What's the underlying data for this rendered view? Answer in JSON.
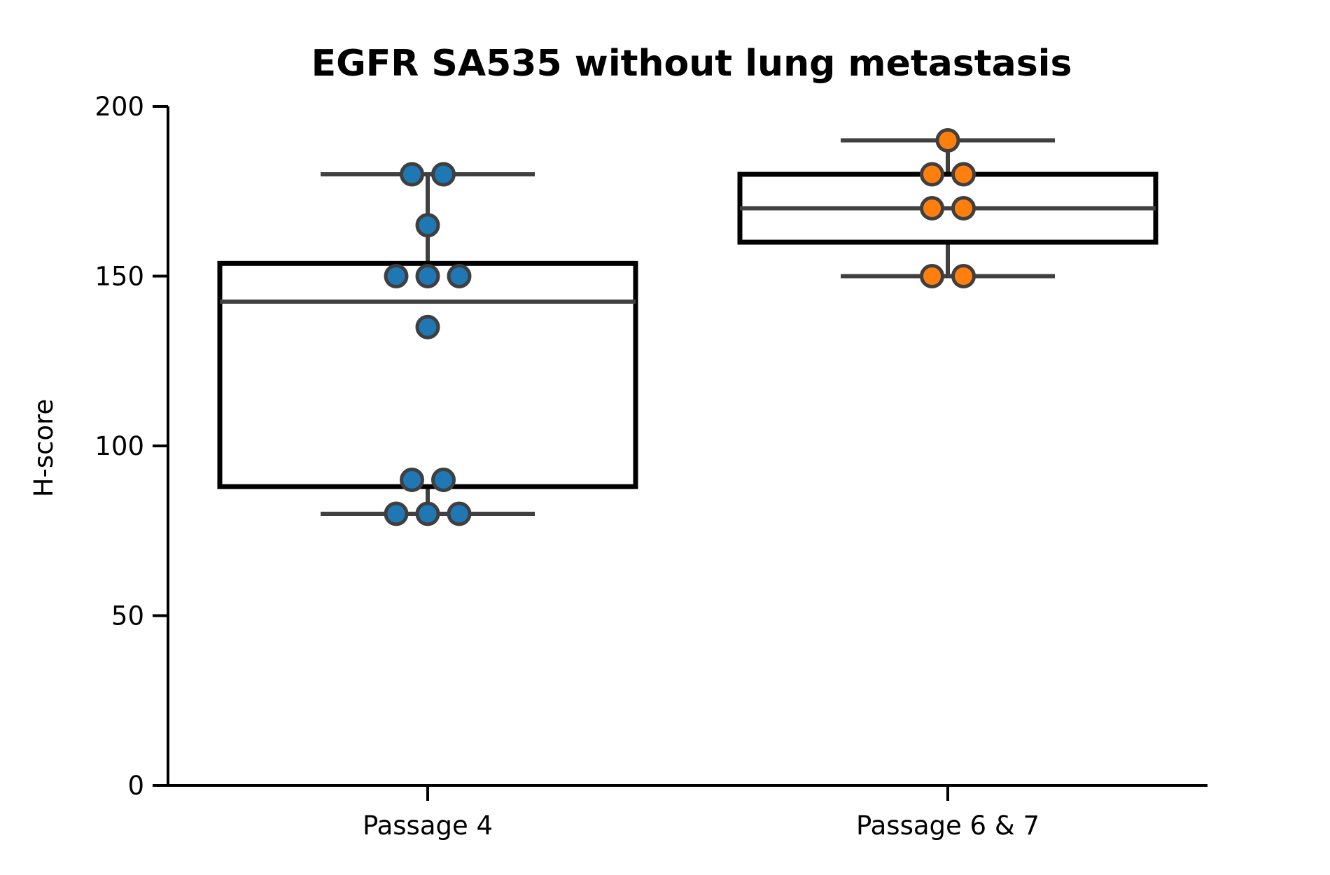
{
  "chart_data": {
    "type": "box",
    "title": "EGFR SA535 without lung metastasis",
    "xlabel": "",
    "ylabel": "H-score",
    "ylim": [
      0,
      200
    ],
    "yticks": [
      0,
      50,
      100,
      150,
      200
    ],
    "yticklabels": [
      "0",
      "50",
      "100",
      "150",
      "200"
    ],
    "categories": [
      "Passage 4",
      "Passage 6 & 7"
    ],
    "grid": false,
    "series": [
      {
        "category": "Passage 4",
        "color": "#1f77b4",
        "q1": 88,
        "median": 142.5,
        "q3": 153.75,
        "whisker_low": 80,
        "whisker_high": 180,
        "points": [
          180,
          180,
          165,
          150,
          150,
          150,
          135,
          90,
          90,
          80,
          80,
          80
        ]
      },
      {
        "category": "Passage 6 & 7",
        "color": "#ff7f0e",
        "q1": 160,
        "median": 170,
        "q3": 180,
        "whisker_low": 150,
        "whisker_high": 190,
        "points": [
          190,
          180,
          180,
          170,
          170,
          150,
          150
        ]
      }
    ]
  }
}
